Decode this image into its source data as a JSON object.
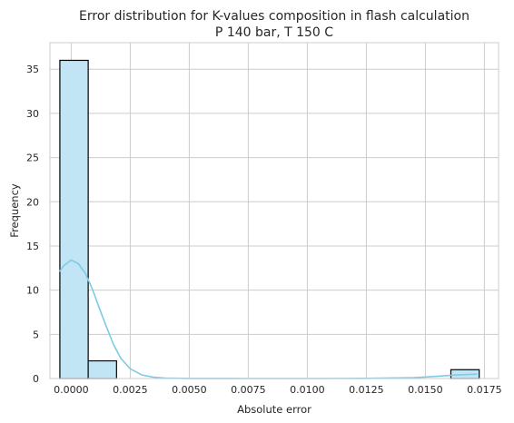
{
  "chart_data": {
    "type": "bar",
    "title": "Error distribution for K-values composition in flash calculation",
    "subtitle": "P 140 bar, T 150 C",
    "xlabel": "Absolute error",
    "ylabel": "Frequency",
    "xlim": [
      -0.0009,
      0.0181
    ],
    "ylim": [
      0,
      38
    ],
    "grid": true,
    "x_ticks": [
      0.0,
      0.0025,
      0.005,
      0.0075,
      0.01,
      0.0125,
      0.015,
      0.0175
    ],
    "x_tick_labels": [
      "0.0000",
      "0.0025",
      "0.0050",
      "0.0075",
      "0.0100",
      "0.0125",
      "0.0150",
      "0.0175"
    ],
    "y_ticks": [
      0,
      5,
      10,
      15,
      20,
      25,
      30,
      35
    ],
    "y_tick_labels": [
      "0",
      "5",
      "10",
      "15",
      "20",
      "25",
      "30",
      "35"
    ],
    "bins": [
      {
        "x0": -0.00048,
        "x1": 0.00072,
        "count": 36
      },
      {
        "x0": 0.00072,
        "x1": 0.00192,
        "count": 2
      },
      {
        "x0": 0.01608,
        "x1": 0.01728,
        "count": 1
      }
    ],
    "kde": {
      "color": "#7ecbe4",
      "points": [
        [
          -0.0005,
          12.1
        ],
        [
          -0.0003,
          12.8
        ],
        [
          0.0,
          13.4
        ],
        [
          0.0003,
          13.0
        ],
        [
          0.0006,
          11.9
        ],
        [
          0.0009,
          10.1
        ],
        [
          0.0012,
          7.9
        ],
        [
          0.0015,
          5.8
        ],
        [
          0.0018,
          3.8
        ],
        [
          0.0021,
          2.3
        ],
        [
          0.0025,
          1.1
        ],
        [
          0.003,
          0.4
        ],
        [
          0.0035,
          0.15
        ],
        [
          0.004,
          0.05
        ],
        [
          0.005,
          0.01
        ],
        [
          0.0075,
          0.0
        ],
        [
          0.01,
          0.0
        ],
        [
          0.0125,
          0.02
        ],
        [
          0.0145,
          0.1
        ],
        [
          0.0155,
          0.25
        ],
        [
          0.0163,
          0.4
        ],
        [
          0.0172,
          0.5
        ]
      ]
    },
    "bar_fill": "#c1e5f4",
    "bar_edge": "#000000"
  }
}
